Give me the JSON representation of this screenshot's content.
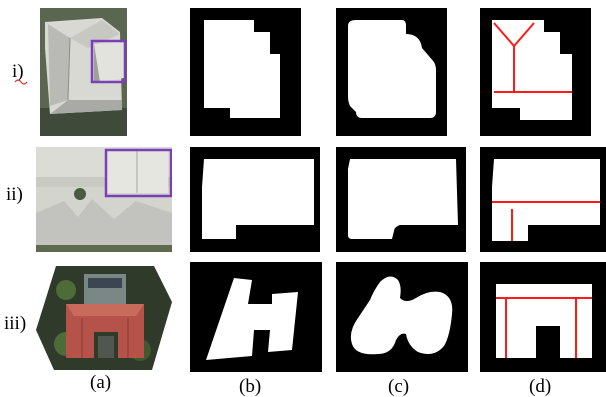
{
  "figure": {
    "row_labels": [
      "i)",
      "ii)",
      "iii)"
    ],
    "column_labels": [
      "(a)",
      "(b)",
      "(c)",
      "(d)"
    ],
    "colors": {
      "background": "#ffffff",
      "mask_background": "#000000",
      "mask_foreground": "#ffffff",
      "skeleton_line": "#ff1a1a",
      "highlight_box": "#7b3fb8",
      "roof_light": "#d6d6d2",
      "roof_shadow": "#9a9e9a",
      "roof_red": "#b5524a",
      "foliage": "#4e6b3a"
    },
    "panel_types": {
      "a": "aerial-photo",
      "b": "ground-truth-mask",
      "c": "predicted-mask",
      "d": "skeleton-overlay"
    }
  }
}
